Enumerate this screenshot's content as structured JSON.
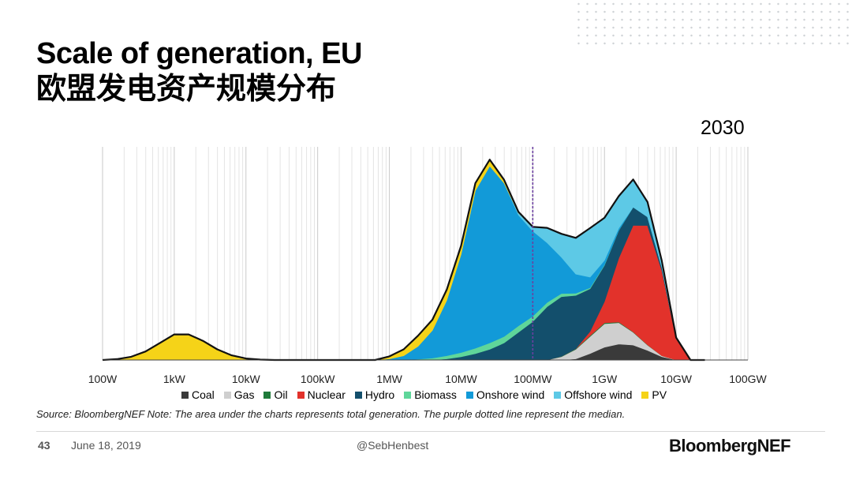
{
  "header": {
    "title": "Scale of generation, EU",
    "subtitle": "欧盟发电资产规模分布",
    "year_label": "2030"
  },
  "chart_data": {
    "type": "area",
    "stacked": true,
    "x_scale": "log",
    "x_unit": "W",
    "x_ticks": [
      {
        "value": 100,
        "label": "100W"
      },
      {
        "value": 1000,
        "label": "1kW"
      },
      {
        "value": 10000,
        "label": "10kW"
      },
      {
        "value": 100000,
        "label": "100kW"
      },
      {
        "value": 1000000,
        "label": "1MW"
      },
      {
        "value": 10000000,
        "label": "10MW"
      },
      {
        "value": 100000000,
        "label": "100MW"
      },
      {
        "value": 1000000000,
        "label": "1GW"
      },
      {
        "value": 10000000000,
        "label": "10GW"
      },
      {
        "value": 100000000000,
        "label": "100GW"
      }
    ],
    "xlim": [
      100,
      100000000000
    ],
    "ylim": [
      0,
      100
    ],
    "y_axis_labels": false,
    "grid": "vertical-minor-log",
    "median": 100000000,
    "median_style": "purple dotted line",
    "x": [
      100,
      158,
      251,
      398,
      631,
      1000,
      1585,
      2512,
      3981,
      6310,
      10000,
      15849,
      25119,
      39811,
      63096,
      100000,
      158489,
      251189,
      398107,
      630957,
      1000000,
      1584893,
      2511886,
      3981072,
      6309573,
      10000000,
      15848932,
      25118864,
      39810717,
      63095734,
      100000000,
      158489319,
      251188643,
      398107171,
      630957344,
      1000000000,
      1584893192,
      2511886432,
      3981071706,
      6309573445,
      10000000000,
      15848931925,
      25118864315
    ],
    "series": [
      {
        "name": "Coal",
        "color": "#3a3a3a",
        "values": [
          0,
          0,
          0,
          0,
          0,
          0,
          0,
          0,
          0,
          0,
          0,
          0,
          0,
          0,
          0,
          0,
          0,
          0,
          0,
          0,
          0,
          0,
          0,
          0,
          0,
          0,
          0,
          0,
          0,
          0,
          0,
          0,
          0,
          0.5,
          3,
          6,
          7.5,
          7,
          4.5,
          1.5,
          0,
          0,
          0
        ]
      },
      {
        "name": "Gas",
        "color": "#cfcfcf",
        "values": [
          0,
          0,
          0,
          0,
          0,
          0,
          0,
          0,
          0,
          0,
          0,
          0,
          0,
          0,
          0,
          0,
          0,
          0,
          0,
          0,
          0,
          0,
          0,
          0,
          0,
          0,
          0,
          0,
          0,
          0,
          0,
          0,
          1.5,
          4.5,
          8,
          11,
          10,
          6,
          2.5,
          0.5,
          0,
          0,
          0
        ]
      },
      {
        "name": "Oil",
        "color": "#1f7a3a",
        "values": [
          0,
          0,
          0,
          0,
          0,
          0,
          0,
          0,
          0,
          0,
          0,
          0,
          0,
          0,
          0,
          0,
          0,
          0,
          0,
          0,
          0,
          0,
          0,
          0,
          0,
          0,
          0,
          0,
          0,
          0,
          0,
          0,
          0.2,
          0.3,
          0.4,
          0.4,
          0.3,
          0.2,
          0.1,
          0,
          0,
          0,
          0
        ]
      },
      {
        "name": "Nuclear",
        "color": "#e2322b",
        "values": [
          0,
          0,
          0,
          0,
          0,
          0,
          0,
          0,
          0,
          0,
          0,
          0,
          0,
          0,
          0,
          0,
          0,
          0,
          0,
          0,
          0,
          0,
          0,
          0,
          0,
          0,
          0,
          0,
          0,
          0,
          0,
          0,
          0,
          0,
          2,
          10,
          30,
          50,
          56,
          40,
          10,
          0,
          0
        ]
      },
      {
        "name": "Hydro",
        "color": "#134f6c",
        "values": [
          0,
          0,
          0,
          0,
          0,
          0,
          0,
          0,
          0,
          0,
          0,
          0,
          0,
          0,
          0,
          0,
          0,
          0,
          0,
          0,
          0,
          0,
          0,
          0,
          0.5,
          1.5,
          3,
          5,
          8,
          13,
          18,
          25,
          28,
          25,
          20,
          17,
          13,
          8.5,
          4,
          1.5,
          0,
          0,
          0
        ]
      },
      {
        "name": "Biomass",
        "color": "#5fd69a",
        "values": [
          0,
          0,
          0,
          0,
          0,
          0,
          0,
          0,
          0,
          0,
          0,
          0,
          0,
          0,
          0,
          0,
          0,
          0,
          0,
          0,
          0,
          0,
          0.4,
          0.9,
          1.5,
          2,
          2.5,
          3,
          3,
          3,
          2.5,
          2,
          1.5,
          1,
          0.5,
          0.3,
          0.1,
          0,
          0,
          0,
          0,
          0,
          0
        ]
      },
      {
        "name": "Onshore wind",
        "color": "#129ad8",
        "values": [
          0,
          0,
          0,
          0,
          0,
          0,
          0,
          0,
          0,
          0,
          0,
          0,
          0,
          0,
          0,
          0,
          0,
          0,
          0,
          0,
          0.5,
          2,
          6,
          13,
          26,
          46,
          74,
          83,
          72,
          52,
          40,
          28,
          17,
          9,
          5,
          2,
          1,
          0,
          0,
          0,
          0,
          0,
          0
        ]
      },
      {
        "name": "Offshore wind",
        "color": "#5dc9e6",
        "values": [
          0,
          0,
          0,
          0,
          0,
          0,
          0,
          0,
          0,
          0,
          0,
          0,
          0,
          0,
          0,
          0,
          0,
          0,
          0,
          0,
          0,
          0,
          0,
          0,
          0,
          0,
          0,
          0,
          0,
          1,
          2,
          7,
          11,
          17,
          23,
          20,
          15,
          13,
          7,
          3,
          0.5,
          0,
          0
        ]
      },
      {
        "name": "PV",
        "color": "#f5d318",
        "values": [
          0,
          0.4,
          1.5,
          4,
          8,
          12,
          12,
          9,
          5,
          2.2,
          0.7,
          0.2,
          0,
          0,
          0,
          0,
          0,
          0,
          0,
          0,
          1.2,
          3,
          5,
          5,
          5,
          4,
          3.5,
          3,
          1.5,
          0.5,
          0,
          0,
          0,
          0,
          0,
          0,
          0,
          0,
          0,
          0,
          0,
          0,
          0
        ]
      }
    ]
  },
  "notes": {
    "source": "Source: BloombergNEF Note: The area under the charts represents total generation. The purple dotted line represent the median."
  },
  "footer": {
    "page_number": "43",
    "date": "June 18, 2019",
    "handle": "@SebHenbest",
    "brand": "BloombergNEF"
  }
}
